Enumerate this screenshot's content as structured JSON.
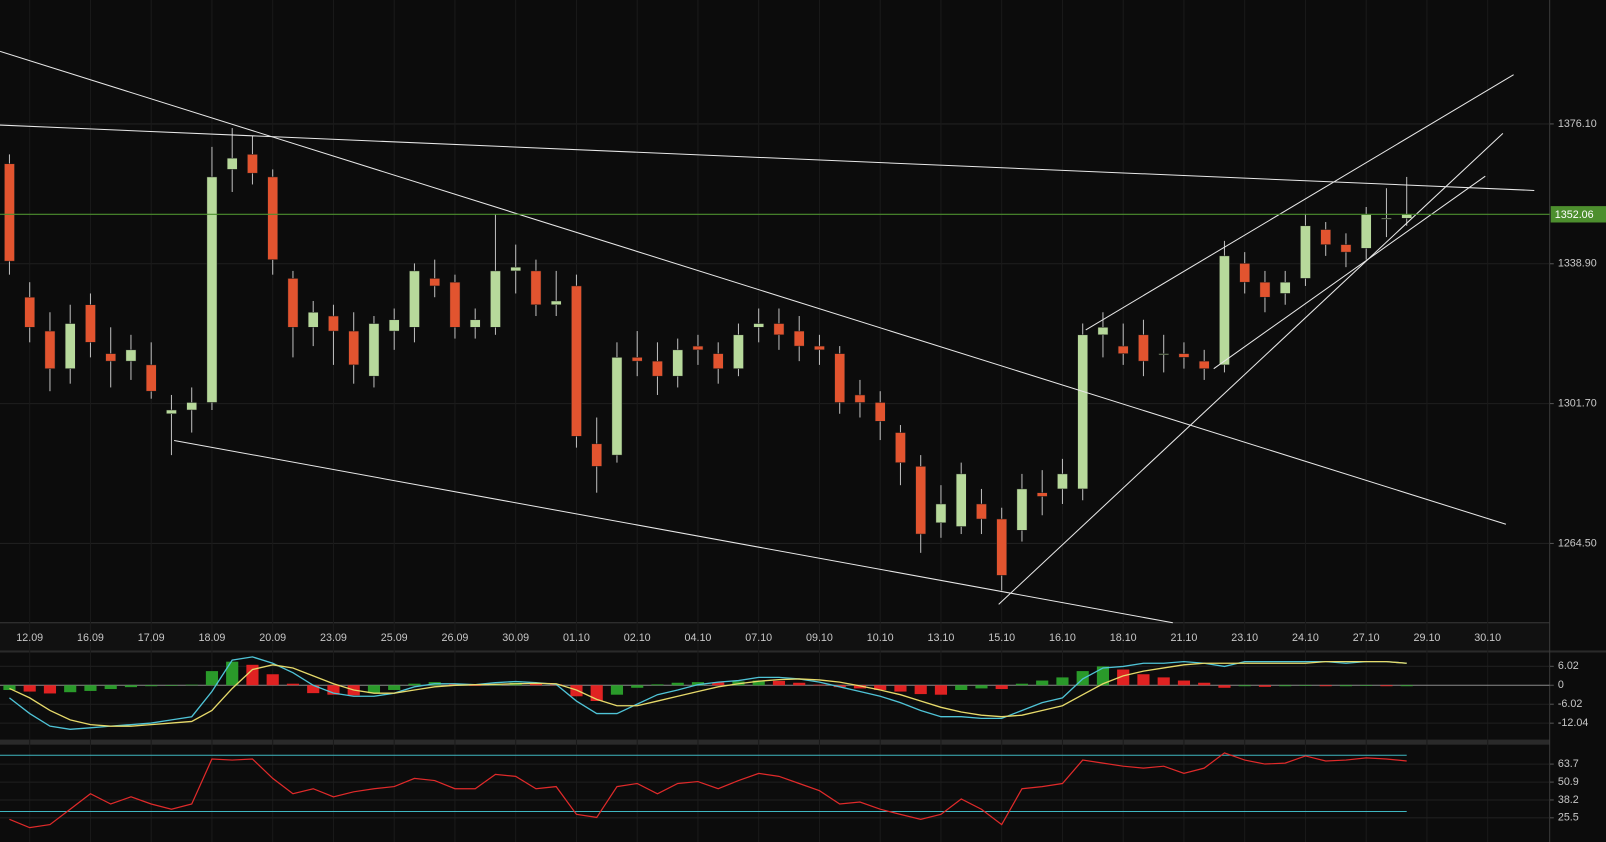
{
  "chart_data": [
    {
      "type": "candlestick",
      "x": [
        -1,
        0,
        1,
        2,
        3,
        4,
        5,
        6,
        7,
        8,
        9,
        10,
        11,
        12,
        13,
        14,
        15,
        16,
        17,
        18,
        19,
        20,
        21,
        22,
        23,
        24,
        25,
        26,
        27,
        28,
        29,
        30,
        31,
        32,
        33,
        34,
        35,
        36,
        37,
        38,
        39,
        40,
        41,
        42,
        43,
        44,
        45,
        46,
        47,
        48,
        49,
        50,
        51,
        52,
        53,
        54,
        55,
        56,
        57,
        58,
        59,
        60,
        61,
        62,
        63,
        64,
        65,
        66,
        67,
        68
      ],
      "candles": [
        [
          1365.5,
          1368,
          1336,
          1339.6
        ],
        [
          1330,
          1334,
          1318,
          1322
        ],
        [
          1321,
          1326,
          1305,
          1311
        ],
        [
          1311,
          1328,
          1307,
          1323
        ],
        [
          1328,
          1331,
          1314,
          1318
        ],
        [
          1315,
          1322,
          1306,
          1313
        ],
        [
          1313,
          1320,
          1308,
          1316
        ],
        [
          1312,
          1318,
          1303,
          1305
        ],
        [
          1299,
          1304,
          1288,
          1300
        ],
        [
          1300,
          1306,
          1294,
          1302
        ],
        [
          1302,
          1370,
          1300,
          1362
        ],
        [
          1364,
          1375,
          1358,
          1367
        ],
        [
          1368,
          1373,
          1360,
          1363
        ],
        [
          1362,
          1364,
          1336,
          1340
        ],
        [
          1335,
          1337,
          1314,
          1322
        ],
        [
          1322,
          1329,
          1317,
          1326
        ],
        [
          1325,
          1328,
          1312,
          1321
        ],
        [
          1321,
          1326,
          1307,
          1312
        ],
        [
          1309,
          1325,
          1306,
          1323
        ],
        [
          1321,
          1327,
          1316,
          1324
        ],
        [
          1322,
          1339,
          1318,
          1337
        ],
        [
          1335,
          1340,
          1330,
          1333
        ],
        [
          1334,
          1336,
          1319,
          1322
        ],
        [
          1322,
          1327,
          1319,
          1324
        ],
        [
          1322,
          1352,
          1320,
          1337
        ],
        [
          1337,
          1344,
          1331,
          1338
        ],
        [
          1337,
          1340,
          1325,
          1328
        ],
        [
          1328,
          1337,
          1325,
          1329
        ],
        [
          1333,
          1336,
          1290,
          1293
        ],
        [
          1291,
          1298,
          1278,
          1285
        ],
        [
          1288,
          1318,
          1286,
          1314
        ],
        [
          1314,
          1321,
          1309,
          1313
        ],
        [
          1313,
          1318,
          1304,
          1309
        ],
        [
          1309,
          1319,
          1306,
          1316
        ],
        [
          1317,
          1320,
          1312,
          1316
        ],
        [
          1315,
          1318,
          1307,
          1311
        ],
        [
          1311,
          1323,
          1309,
          1320
        ],
        [
          1322,
          1327,
          1318,
          1323
        ],
        [
          1323,
          1327,
          1316,
          1320
        ],
        [
          1321,
          1325,
          1313,
          1317
        ],
        [
          1317,
          1320,
          1312,
          1316
        ],
        [
          1315,
          1317,
          1299,
          1302
        ],
        [
          1304,
          1308,
          1298,
          1302
        ],
        [
          1302,
          1305,
          1292,
          1297
        ],
        [
          1294,
          1296,
          1280,
          1286
        ],
        [
          1285,
          1288,
          1262,
          1267
        ],
        [
          1270,
          1280,
          1266,
          1275
        ],
        [
          1269,
          1286,
          1267,
          1283
        ],
        [
          1275,
          1279,
          1267,
          1271
        ],
        [
          1271,
          1274,
          1252,
          1256
        ],
        [
          1268,
          1283,
          1265,
          1279
        ],
        [
          1278,
          1284,
          1272,
          1277
        ],
        [
          1279,
          1287,
          1275,
          1283
        ],
        [
          1279,
          1323,
          1276,
          1320
        ],
        [
          1320,
          1326,
          1314,
          1322
        ],
        [
          1317,
          1323,
          1312,
          1315
        ],
        [
          1320,
          1324,
          1309,
          1313
        ],
        [
          1315,
          1320,
          1310,
          1315
        ],
        [
          1315,
          1318,
          1311,
          1314
        ],
        [
          1313,
          1316,
          1308,
          1311
        ],
        [
          1312,
          1345,
          1310,
          1341
        ],
        [
          1339,
          1342,
          1331,
          1334
        ],
        [
          1334,
          1337,
          1326,
          1330
        ],
        [
          1331,
          1337,
          1328,
          1334
        ],
        [
          1335,
          1352,
          1333,
          1349
        ],
        [
          1348,
          1350,
          1341,
          1344
        ],
        [
          1344,
          1347,
          1338,
          1342
        ],
        [
          1343,
          1354,
          1340,
          1352
        ],
        [
          1351,
          1359,
          1346,
          1351
        ],
        [
          1351,
          1362,
          1349,
          1352.06
        ]
      ],
      "up_color": "#b7d99b",
      "down_color": "#e2542f",
      "xlim": [
        -1.467,
        75.06
      ],
      "xticks": [
        {
          "value": 0,
          "label": "12.09"
        },
        {
          "value": 3,
          "label": "16.09"
        },
        {
          "value": 6,
          "label": "17.09"
        },
        {
          "value": 9,
          "label": "18.09"
        },
        {
          "value": 12,
          "label": "20.09"
        },
        {
          "value": 15,
          "label": "23.09"
        },
        {
          "value": 18,
          "label": "25.09"
        },
        {
          "value": 21,
          "label": "26.09"
        },
        {
          "value": 24,
          "label": "30.09"
        },
        {
          "value": 27,
          "label": "01.10"
        },
        {
          "value": 30,
          "label": "02.10"
        },
        {
          "value": 33,
          "label": "04.10"
        },
        {
          "value": 36,
          "label": "07.10"
        },
        {
          "value": 39,
          "label": "09.10"
        },
        {
          "value": 42,
          "label": "10.10"
        },
        {
          "value": 45,
          "label": "13.10"
        },
        {
          "value": 48,
          "label": "15.10"
        },
        {
          "value": 51,
          "label": "16.10"
        },
        {
          "value": 54,
          "label": "18.10"
        },
        {
          "value": 57,
          "label": "21.10"
        },
        {
          "value": 60,
          "label": "23.10"
        },
        {
          "value": 63,
          "label": "24.10"
        },
        {
          "value": 66,
          "label": "27.10"
        },
        {
          "value": 69,
          "label": "29.10"
        },
        {
          "value": 72,
          "label": "30.10"
        }
      ],
      "ylim": [
        1243.39,
        1409.07
      ],
      "yticks": [
        {
          "value": 1376.1,
          "label": "1376.10"
        },
        {
          "value": 1338.9,
          "label": "1338.90"
        },
        {
          "value": 1301.7,
          "label": "1301.70"
        },
        {
          "value": 1264.5,
          "label": "1264.50"
        }
      ],
      "last": 1352.06,
      "last_color": "#4d8f2e",
      "trendlines": [
        {
          "x": [
            -1.467,
            72.9
          ],
          "y": [
            1395.4,
            1269.6
          ]
        },
        {
          "x": [
            -1.467,
            74.3
          ],
          "y": [
            1375.8,
            1358.4
          ]
        },
        {
          "x": [
            7.13,
            56.45
          ],
          "y": [
            1291.9,
            1243.4
          ]
        },
        {
          "x": [
            47.85,
            72.75
          ],
          "y": [
            1248.3,
            1373.6
          ]
        },
        {
          "x": [
            52.15,
            73.28
          ],
          "y": [
            1321.3,
            1389.2
          ]
        },
        {
          "x": [
            58.47,
            71.88
          ],
          "y": [
            1311.0,
            1362.2
          ]
        }
      ],
      "trend_color": "#e8e8e8",
      "grid": true
    },
    {
      "type": "combo",
      "x": [
        -1,
        0,
        1,
        2,
        3,
        4,
        5,
        6,
        7,
        8,
        9,
        10,
        11,
        12,
        13,
        14,
        15,
        16,
        17,
        18,
        19,
        20,
        21,
        22,
        23,
        24,
        25,
        26,
        27,
        28,
        29,
        30,
        31,
        32,
        33,
        34,
        35,
        36,
        37,
        38,
        39,
        40,
        41,
        42,
        43,
        44,
        45,
        46,
        47,
        48,
        49,
        50,
        51,
        52,
        53,
        54,
        55,
        56,
        57,
        58,
        59,
        60,
        61,
        62,
        63,
        64,
        65,
        66,
        67,
        68
      ],
      "xlim": [
        -1.467,
        75.06
      ],
      "ylim": [
        -17.25,
        10.41
      ],
      "yticks": [
        6.02,
        0,
        -6.02,
        -12.04
      ],
      "series": [
        {
          "kind": "bar",
          "up_color": "#2a9a2a",
          "down_color": "#e02222",
          "values": [
            -1.5,
            -2,
            -2.6,
            -2.2,
            -1.8,
            -1.2,
            -0.6,
            -0.3,
            -0.2,
            0.2,
            4.5,
            7.5,
            6.5,
            3.5,
            0.5,
            -2.5,
            -3,
            -3.2,
            -2.5,
            -1.5,
            0.5,
            1,
            0.4,
            -0.2,
            0.4,
            0.8,
            0.6,
            0.3,
            -3.5,
            -5,
            -3,
            -0.8,
            0.3,
            0.8,
            1,
            0.9,
            1.2,
            1.5,
            1.4,
            0.8,
            0.2,
            -0.6,
            -1,
            -1.5,
            -2,
            -2.8,
            -3,
            -1.5,
            -1,
            -1.2,
            0.5,
            1.5,
            2.5,
            4.5,
            6,
            5,
            3.5,
            2.5,
            1.5,
            0.8,
            -0.8,
            -0.3,
            -0.5,
            -0.3,
            -0.2,
            -0.3,
            -0.3,
            -0.2,
            -0.3,
            -0.3
          ]
        },
        {
          "kind": "line",
          "color": "#4fc3d6",
          "values": [
            -4,
            -9,
            -13,
            -14,
            -13.5,
            -13,
            -12.5,
            -12,
            -11,
            -10,
            -2,
            8,
            9,
            7,
            4,
            0,
            -2.5,
            -3.5,
            -3.5,
            -2.5,
            -0.5,
            0.5,
            0.5,
            0.2,
            0.8,
            1.2,
            0.8,
            0.3,
            -5,
            -9,
            -9,
            -6,
            -3,
            -1.5,
            0.2,
            1,
            1.5,
            2.5,
            2.5,
            2,
            1,
            -0.5,
            -2,
            -3.5,
            -5.5,
            -8,
            -10,
            -10,
            -10.5,
            -10.5,
            -8,
            -5.5,
            -4,
            2,
            5.5,
            6,
            7,
            7,
            7.5,
            7,
            6,
            7.5,
            7.5,
            7.5,
            7.5,
            7.5,
            7,
            7.5,
            7.5,
            7
          ]
        },
        {
          "kind": "line",
          "color": "#e6d96a",
          "values": [
            -1,
            -4,
            -8,
            -11,
            -12.5,
            -13,
            -13,
            -12.5,
            -12,
            -11.5,
            -8,
            -1,
            5,
            6.5,
            5.5,
            3,
            0.5,
            -1.5,
            -2.5,
            -2.5,
            -1.5,
            -0.5,
            0,
            0.2,
            0.3,
            0.5,
            0.6,
            0.5,
            -1.5,
            -4.5,
            -6.5,
            -6.5,
            -5,
            -3.5,
            -2,
            -0.5,
            0.5,
            1.3,
            1.8,
            2,
            1.7,
            1,
            -0.2,
            -1.5,
            -3,
            -5,
            -7,
            -8.5,
            -9.5,
            -10,
            -9.5,
            -8,
            -6.5,
            -3,
            0.5,
            3,
            4.5,
            5.5,
            6.5,
            7,
            7,
            7,
            7,
            7,
            7,
            7.5,
            7.5,
            7.5,
            7.5,
            7
          ]
        }
      ],
      "grid": true
    },
    {
      "type": "line",
      "x": [
        -1,
        0,
        1,
        2,
        3,
        4,
        5,
        6,
        7,
        8,
        9,
        10,
        11,
        12,
        13,
        14,
        15,
        16,
        17,
        18,
        19,
        20,
        21,
        22,
        23,
        24,
        25,
        26,
        27,
        28,
        29,
        30,
        31,
        32,
        33,
        34,
        35,
        36,
        37,
        38,
        39,
        40,
        41,
        42,
        43,
        44,
        45,
        46,
        47,
        48,
        49,
        50,
        51,
        52,
        53,
        54,
        55,
        56,
        57,
        58,
        59,
        60,
        61,
        62,
        63,
        64,
        65,
        66,
        67,
        68
      ],
      "xlim": [
        -1.467,
        75.06
      ],
      "ylim": [
        8.3,
        77.5
      ],
      "yticks": [
        63.7,
        50.9,
        38.2,
        25.5
      ],
      "levels": [
        70,
        30
      ],
      "level_color": "#3fb6c0",
      "color": "#e02a2a",
      "values": [
        24.4,
        18.5,
        20.7,
        31.6,
        42.6,
        35.3,
        40.4,
        35.3,
        31.6,
        35.3,
        67.3,
        66.6,
        67.3,
        53.5,
        42.6,
        46.2,
        40.4,
        44,
        46.2,
        47.7,
        53.5,
        52,
        46.2,
        46.2,
        56.4,
        55,
        46.2,
        47.7,
        28,
        25.8,
        47.7,
        49.9,
        42.6,
        49.9,
        51.3,
        46.2,
        52,
        57.1,
        55,
        49.9,
        44.8,
        35.3,
        36.7,
        31.6,
        28,
        24.4,
        28,
        38.9,
        31.6,
        20.7,
        46.2,
        47.7,
        49.9,
        66.6,
        64.4,
        62.2,
        60.8,
        62.2,
        57.1,
        60.8,
        71.7,
        66.6,
        63.7,
        64.4,
        69.5,
        65.9,
        66.6,
        68.1,
        67.3,
        65.9
      ],
      "grid": true
    }
  ]
}
